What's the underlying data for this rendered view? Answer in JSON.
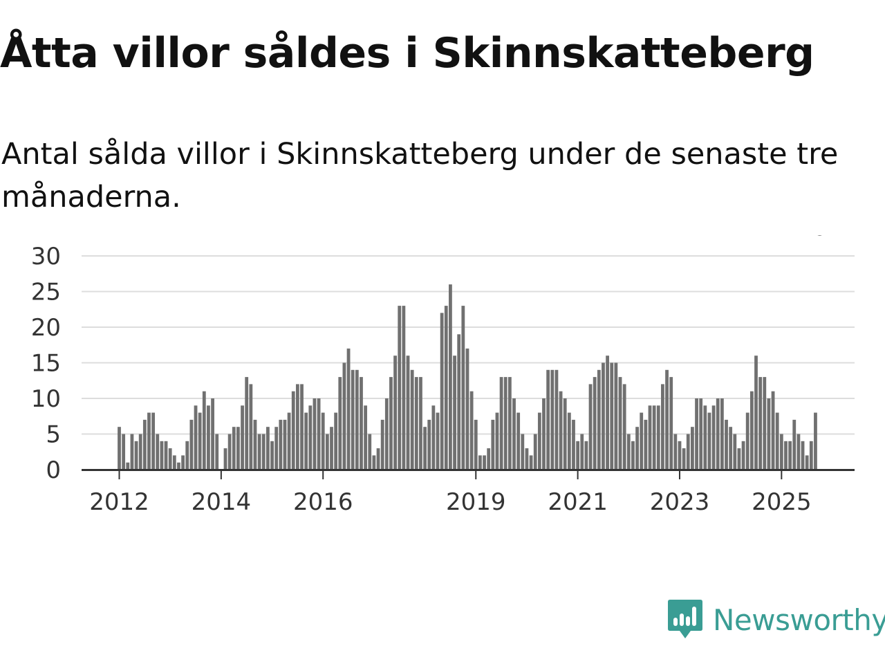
{
  "header": {
    "title": "Åtta villor såldes i Skinnskatteberg",
    "subtitle": "Antal sålda villor i Skinnskatteberg under de senaste tre månaderna."
  },
  "brand": {
    "name": "Newsworthy",
    "icon": "newsworthy-logo-icon",
    "color": "#3a9d94"
  },
  "colors": {
    "bar": "#707070",
    "highlight": "#1a9a8e",
    "grid": "#dddddd",
    "axis": "#333333"
  },
  "chart_data": {
    "type": "bar",
    "title": "Åtta villor såldes i Skinnskatteberg",
    "xlabel": "",
    "ylabel": "",
    "ylim": [
      0,
      30
    ],
    "yticks": [
      "0",
      "5",
      "10",
      "15",
      "20",
      "25",
      "30"
    ],
    "x_start": "2012-01",
    "xtick_labels": [
      {
        "label": "2012",
        "index": 0
      },
      {
        "label": "2014",
        "index": 24
      },
      {
        "label": "2016",
        "index": 48
      },
      {
        "label": "2019",
        "index": 84
      },
      {
        "label": "2021",
        "index": 108
      },
      {
        "label": "2023",
        "index": 132
      },
      {
        "label": "2025",
        "index": 156
      }
    ],
    "values": [
      6,
      5,
      1,
      5,
      4,
      5,
      7,
      8,
      8,
      5,
      4,
      4,
      3,
      2,
      1,
      2,
      4,
      7,
      9,
      8,
      11,
      9,
      10,
      5,
      0,
      3,
      5,
      6,
      6,
      9,
      13,
      12,
      7,
      5,
      5,
      6,
      4,
      6,
      7,
      7,
      8,
      11,
      12,
      12,
      8,
      9,
      10,
      10,
      8,
      5,
      6,
      8,
      13,
      15,
      17,
      14,
      14,
      13,
      9,
      5,
      2,
      3,
      7,
      10,
      13,
      16,
      23,
      23,
      16,
      14,
      13,
      13,
      6,
      7,
      9,
      8,
      22,
      23,
      26,
      16,
      19,
      23,
      17,
      11,
      7,
      2,
      2,
      3,
      7,
      8,
      13,
      13,
      13,
      10,
      8,
      5,
      3,
      2,
      5,
      8,
      10,
      14,
      14,
      14,
      11,
      10,
      8,
      7,
      4,
      5,
      4,
      12,
      13,
      14,
      15,
      16,
      15,
      15,
      13,
      12,
      5,
      4,
      6,
      8,
      7,
      9,
      9,
      9,
      12,
      14,
      13,
      5,
      4,
      3,
      5,
      6,
      10,
      10,
      9,
      8,
      9,
      10,
      10,
      7,
      6,
      5,
      3,
      4,
      8,
      11,
      16,
      13,
      13,
      10,
      11,
      8,
      5,
      4,
      4,
      7,
      5,
      4,
      2,
      4,
      8
    ],
    "highlight_index": 165,
    "data_labels": [
      {
        "index": 165,
        "text": "8"
      }
    ]
  }
}
